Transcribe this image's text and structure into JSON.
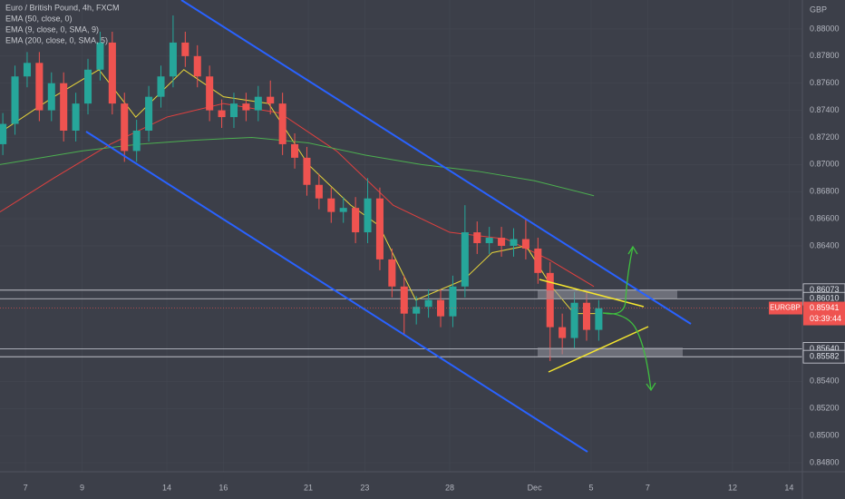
{
  "chart_data": {
    "type": "candlestick",
    "title": "Euro / British Pound, 4h, FXCM",
    "y_unit": "GBP",
    "symbol": "EURGBP",
    "countdown": "03:39:44",
    "current_price": 0.85941,
    "up_color": "#26a69a",
    "down_color": "#ef5350",
    "x": [
      -0.8,
      -0.37,
      0.06,
      0.49,
      0.92,
      1.35,
      1.78,
      2.21,
      2.64,
      3.07,
      3.5,
      3.93,
      4.36,
      4.79,
      5.22,
      5.65,
      6.08,
      6.51,
      6.94,
      7.37,
      7.8,
      8.23,
      8.66,
      9.09,
      9.52,
      9.95,
      10.38,
      10.81,
      11.24,
      11.67,
      12.1,
      12.53,
      12.96,
      13.39,
      13.82,
      14.25,
      14.68,
      15.11,
      15.54,
      15.97,
      16.4,
      16.83,
      17.26,
      17.69,
      18.12,
      18.55,
      18.98,
      19.41,
      19.84,
      20.27
    ],
    "open": [
      0.8715,
      0.873,
      0.8765,
      0.8775,
      0.874,
      0.876,
      0.8725,
      0.8745,
      0.877,
      0.879,
      0.8745,
      0.871,
      0.8725,
      0.875,
      0.8765,
      0.879,
      0.878,
      0.8765,
      0.874,
      0.8735,
      0.8745,
      0.874,
      0.875,
      0.8745,
      0.8715,
      0.8705,
      0.8685,
      0.8675,
      0.8665,
      0.8668,
      0.865,
      0.8675,
      0.863,
      0.861,
      0.859,
      0.8595,
      0.86,
      0.8588,
      0.861,
      0.865,
      0.8642,
      0.8646,
      0.864,
      0.8645,
      0.8638,
      0.862,
      0.858,
      0.8572,
      0.8598,
      0.8578
    ],
    "high": [
      0.8738,
      0.8773,
      0.8783,
      0.8783,
      0.8768,
      0.8768,
      0.8753,
      0.8778,
      0.8798,
      0.8798,
      0.8753,
      0.8733,
      0.8758,
      0.8773,
      0.881,
      0.8798,
      0.8788,
      0.8773,
      0.8748,
      0.8753,
      0.8753,
      0.8758,
      0.8762,
      0.8753,
      0.8723,
      0.8713,
      0.8693,
      0.8683,
      0.8676,
      0.8676,
      0.869,
      0.8683,
      0.8638,
      0.8618,
      0.8603,
      0.8608,
      0.8608,
      0.8618,
      0.867,
      0.8658,
      0.8654,
      0.8654,
      0.8653,
      0.866,
      0.8646,
      0.8628,
      0.859,
      0.8606,
      0.8606,
      0.86
    ],
    "low": [
      0.8707,
      0.8722,
      0.8757,
      0.8732,
      0.8732,
      0.8717,
      0.8717,
      0.8737,
      0.8762,
      0.8737,
      0.8702,
      0.8702,
      0.8717,
      0.8742,
      0.8757,
      0.8772,
      0.8757,
      0.8732,
      0.8727,
      0.8727,
      0.8732,
      0.8732,
      0.8737,
      0.8707,
      0.8697,
      0.8677,
      0.8667,
      0.8657,
      0.8657,
      0.8642,
      0.8642,
      0.8622,
      0.8602,
      0.8575,
      0.8582,
      0.8587,
      0.858,
      0.858,
      0.8602,
      0.8634,
      0.8634,
      0.8632,
      0.8632,
      0.863,
      0.8612,
      0.8555,
      0.856,
      0.8564,
      0.857,
      0.857
    ],
    "close": [
      0.873,
      0.8765,
      0.8775,
      0.874,
      0.876,
      0.8725,
      0.8745,
      0.877,
      0.879,
      0.8745,
      0.871,
      0.8725,
      0.875,
      0.8765,
      0.879,
      0.878,
      0.8765,
      0.874,
      0.8735,
      0.8745,
      0.874,
      0.875,
      0.8745,
      0.8715,
      0.8705,
      0.8685,
      0.8675,
      0.8665,
      0.8668,
      0.865,
      0.8675,
      0.863,
      0.861,
      0.859,
      0.8595,
      0.86,
      0.8588,
      0.861,
      0.865,
      0.8642,
      0.8646,
      0.864,
      0.8645,
      0.8638,
      0.862,
      0.858,
      0.8572,
      0.8598,
      0.8578,
      0.8594
    ],
    "series": [
      {
        "name": "EMA (50, close, 0)",
        "color": "#e0403f",
        "x": [
          -0.9,
          1,
          3,
          5,
          7,
          9,
          11,
          13,
          15,
          17,
          18.5,
          20.1
        ],
        "values": [
          0.8665,
          0.869,
          0.8715,
          0.8735,
          0.8745,
          0.8738,
          0.871,
          0.867,
          0.865,
          0.8645,
          0.863,
          0.861
        ]
      },
      {
        "name": "EMA (9, close, 0, SMA, 9)",
        "color": "#e8d63a",
        "x": [
          -0.8,
          1,
          2.6,
          3.9,
          5.6,
          7,
          8.6,
          10,
          11.5,
          12.5,
          13.8,
          15.5,
          16.5,
          17.7,
          18.6,
          19.4,
          20.3
        ],
        "values": [
          0.8725,
          0.875,
          0.877,
          0.8735,
          0.877,
          0.875,
          0.8745,
          0.87,
          0.867,
          0.8655,
          0.86,
          0.8615,
          0.8635,
          0.864,
          0.861,
          0.859,
          0.859
        ]
      },
      {
        "name": "EMA (200, close, 0, SMA, 5)",
        "color": "#4caf50",
        "x": [
          -0.9,
          2,
          4,
          6,
          8,
          10,
          12,
          14,
          16,
          18,
          20.1
        ],
        "values": [
          0.87,
          0.871,
          0.8715,
          0.8718,
          0.872,
          0.8716,
          0.8707,
          0.87,
          0.8695,
          0.8688,
          0.8677
        ]
      }
    ],
    "levels": [
      0.86073,
      0.8601,
      0.8564,
      0.85582
    ],
    "level_labels": [
      "0.86073",
      "0.86010",
      "0.85640",
      "0.85582"
    ],
    "current_price_label": "0.85941",
    "xlim": [
      -0.9,
      27.47
    ],
    "xticks": [
      {
        "value": 0,
        "label": "7"
      },
      {
        "value": 2,
        "label": "9"
      },
      {
        "value": 5,
        "label": "14"
      },
      {
        "value": 7,
        "label": "16"
      },
      {
        "value": 10,
        "label": "21"
      },
      {
        "value": 12,
        "label": "23"
      },
      {
        "value": 15,
        "label": "28"
      },
      {
        "value": 18,
        "label": "Dec"
      },
      {
        "value": 20,
        "label": "5"
      },
      {
        "value": 22,
        "label": "7"
      },
      {
        "value": 25,
        "label": "12"
      },
      {
        "value": 27,
        "label": "14"
      }
    ],
    "ylim": [
      0.84733,
      0.88214
    ],
    "yticks": [
      {
        "value": 0.88,
        "label": "0.88000"
      },
      {
        "value": 0.878,
        "label": "0.87800"
      },
      {
        "value": 0.876,
        "label": "0.87600"
      },
      {
        "value": 0.874,
        "label": "0.87400"
      },
      {
        "value": 0.872,
        "label": "0.87200"
      },
      {
        "value": 0.87,
        "label": "0.87000"
      },
      {
        "value": 0.868,
        "label": "0.86800"
      },
      {
        "value": 0.866,
        "label": "0.86600"
      },
      {
        "value": 0.864,
        "label": "0.86400"
      },
      {
        "value": 0.854,
        "label": "0.85400"
      },
      {
        "value": 0.852,
        "label": "0.85200"
      },
      {
        "value": 0.85,
        "label": "0.85000"
      },
      {
        "value": 0.848,
        "label": "0.84800"
      }
    ]
  }
}
